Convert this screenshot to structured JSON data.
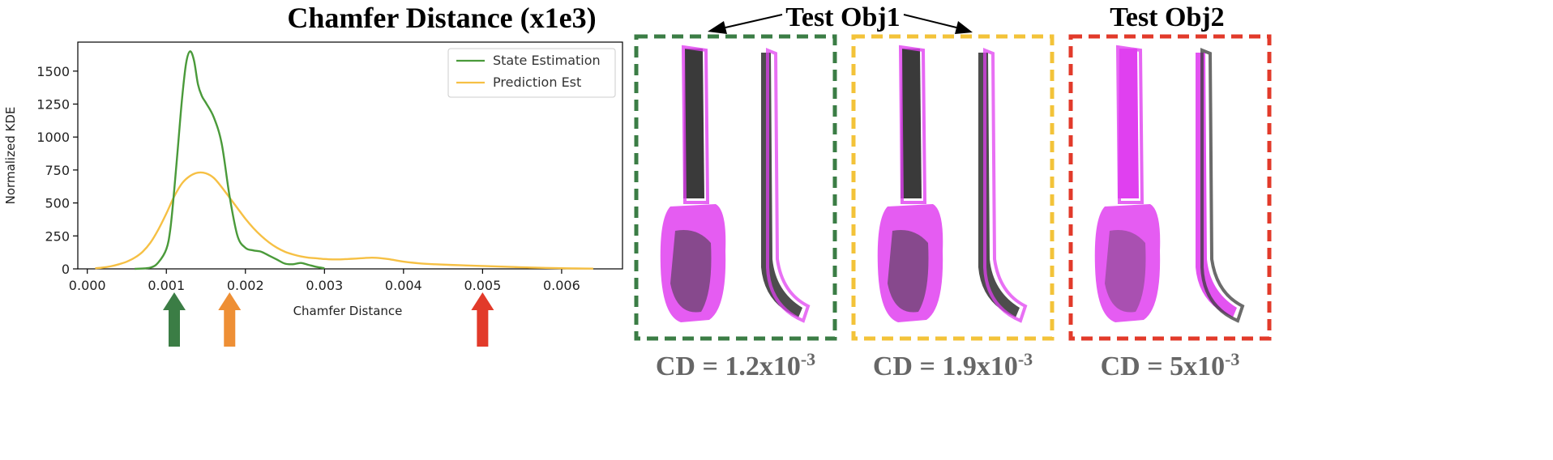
{
  "chart_data": {
    "type": "line",
    "title": "Chamfer Distance (x1e3)",
    "xlabel": "Chamfer Distance",
    "ylabel": "Normalized KDE",
    "xlim": [
      -0.00012,
      0.00677
    ],
    "ylim": [
      0,
      1720
    ],
    "xticks": [
      0.0,
      0.001,
      0.002,
      0.003,
      0.004,
      0.005,
      0.006
    ],
    "xtick_labels": [
      "0.000",
      "0.001",
      "0.002",
      "0.003",
      "0.004",
      "0.005",
      "0.006"
    ],
    "yticks": [
      0,
      250,
      500,
      750,
      1000,
      1250,
      1500
    ],
    "ytick_labels": [
      "0",
      "250",
      "500",
      "750",
      "1000",
      "1250",
      "1500"
    ],
    "grid": false,
    "legend": "top-right",
    "series": [
      {
        "name": "State Estimation",
        "color": "#4a9a3a",
        "x": [
          0.0006,
          0.0008,
          0.0009,
          0.001,
          0.00105,
          0.0011,
          0.00115,
          0.0012,
          0.00125,
          0.0013,
          0.00135,
          0.0014,
          0.00145,
          0.0015,
          0.0016,
          0.0017,
          0.0018,
          0.0019,
          0.002,
          0.0021,
          0.0022,
          0.0023,
          0.0024,
          0.0025,
          0.0026,
          0.0027,
          0.0028,
          0.0029,
          0.003
        ],
        "y": [
          0,
          10,
          50,
          150,
          300,
          600,
          950,
          1300,
          1560,
          1650,
          1580,
          1400,
          1310,
          1260,
          1150,
          950,
          550,
          250,
          160,
          140,
          130,
          100,
          70,
          40,
          35,
          45,
          30,
          15,
          5
        ]
      },
      {
        "name": "Prediction Est",
        "color": "#f6c044",
        "x": [
          0.0001,
          0.0002,
          0.0003,
          0.0004,
          0.0005,
          0.0006,
          0.0007,
          0.0008,
          0.0009,
          0.001,
          0.0011,
          0.0012,
          0.0013,
          0.0014,
          0.0015,
          0.0016,
          0.0017,
          0.0018,
          0.0019,
          0.002,
          0.0021,
          0.0022,
          0.0023,
          0.0024,
          0.0025,
          0.0026,
          0.0027,
          0.0028,
          0.0029,
          0.003,
          0.0031,
          0.0032,
          0.0033,
          0.0034,
          0.0035,
          0.0036,
          0.0037,
          0.0038,
          0.0039,
          0.004,
          0.0042,
          0.0044,
          0.0046,
          0.0048,
          0.005,
          0.0052,
          0.0054,
          0.0056,
          0.0058,
          0.006,
          0.0062,
          0.0064
        ],
        "y": [
          5,
          10,
          20,
          35,
          55,
          85,
          130,
          200,
          300,
          420,
          550,
          650,
          705,
          730,
          725,
          690,
          620,
          540,
          460,
          380,
          310,
          250,
          200,
          160,
          130,
          110,
          95,
          85,
          80,
          75,
          72,
          72,
          75,
          78,
          82,
          85,
          82,
          75,
          65,
          55,
          42,
          35,
          30,
          26,
          22,
          18,
          14,
          10,
          7,
          5,
          3,
          2
        ]
      }
    ],
    "markers": [
      {
        "x": 0.0011,
        "color": "#3b7d45"
      },
      {
        "x": 0.0018,
        "color": "#ee8f35"
      },
      {
        "x": 0.005,
        "color": "#e23a2a"
      }
    ]
  },
  "right_panel": {
    "group_label_1": "Test Obj1",
    "group_label_2": "Test Obj2",
    "boxes": [
      {
        "color": "#3b7d45",
        "cd_prefix": "CD = 1.2x10",
        "cd_exp": "-3"
      },
      {
        "color": "#f3c339",
        "cd_prefix": "CD = 1.9x10",
        "cd_exp": "-3"
      },
      {
        "color": "#e23a2a",
        "cd_prefix": "CD = 5x10",
        "cd_exp": "-3"
      }
    ],
    "colors": {
      "magenta": "#e040f0",
      "dark": "#3a3a3a"
    }
  }
}
